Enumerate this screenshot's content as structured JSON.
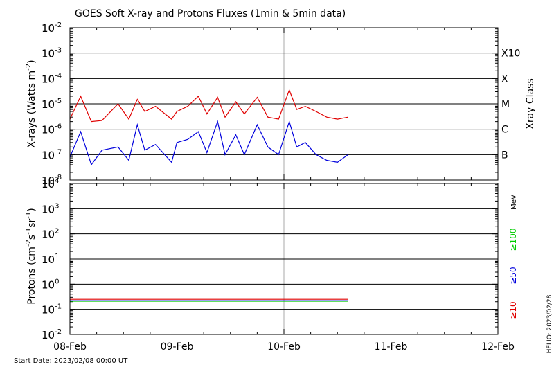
{
  "colors": {
    "background": "#ffffff",
    "gridline": "#000000",
    "dayline": "#aaaaaa",
    "xray_long": "#e00000",
    "xray_short": "#0000dd",
    "proton_10": "#e00000",
    "proton_50": "#0000dd",
    "proton_100": "#00cc00"
  },
  "header": {
    "title": "GOES Soft X-ray and Protons Fluxes   (1min & 5min data)"
  },
  "footer": {
    "start_date": "Start Date: 2023/02/08 00:00 UT",
    "helio_stamp": "HELIO: 2023/02/28"
  },
  "chart_data": [
    {
      "type": "line",
      "panel": "xray",
      "ylabel_main": "X-rays (Watts m",
      "ylabel_exp": "-2",
      "ylabel_close": ")",
      "yscale": "log",
      "ylim": [
        1e-08,
        0.01
      ],
      "ytick_exponents": [
        "-2",
        "-3",
        "-4",
        "-5",
        "-6",
        "-7",
        "-8"
      ],
      "right_axis_title": "Xray Class",
      "class_labels": [
        "X10",
        "X",
        "M",
        "C",
        "B"
      ],
      "class_levels": [
        0.001,
        0.0001,
        1e-05,
        1e-06,
        1e-07
      ],
      "x_days": [
        0,
        0.1,
        0.2,
        0.3,
        0.45,
        0.55,
        0.63,
        0.7,
        0.8,
        0.95,
        1.0,
        1.1,
        1.2,
        1.28,
        1.38,
        1.45,
        1.55,
        1.63,
        1.75,
        1.85,
        1.95,
        2.05,
        2.12,
        2.2,
        2.3,
        2.4,
        2.5,
        2.6
      ],
      "series": [
        {
          "name": "",
          "color_key": "xray_long",
          "values": [
            2.5e-06,
            2e-05,
            2e-06,
            2.2e-06,
            1e-05,
            2.5e-06,
            1.5e-05,
            5e-06,
            8e-06,
            2.5e-06,
            5e-06,
            8e-06,
            2e-05,
            4e-06,
            1.8e-05,
            3e-06,
            1.2e-05,
            4e-06,
            1.8e-05,
            3e-06,
            2.5e-06,
            3.5e-05,
            6e-06,
            8e-06,
            5e-06,
            3e-06,
            2.5e-06,
            3e-06
          ]
        },
        {
          "name": "",
          "color_key": "xray_short",
          "values": [
            8e-08,
            8e-07,
            4e-08,
            1.5e-07,
            2e-07,
            6e-08,
            1.5e-06,
            1.5e-07,
            2.5e-07,
            5e-08,
            3e-07,
            4e-07,
            8e-07,
            1.2e-07,
            2e-06,
            1e-07,
            6e-07,
            1e-07,
            1.5e-06,
            2e-07,
            1e-07,
            2e-06,
            2e-07,
            3e-07,
            1e-07,
            6e-08,
            5e-08,
            1e-07
          ]
        }
      ]
    },
    {
      "type": "line",
      "panel": "protons",
      "ylabel_main": "Protons (cm",
      "ylabel_mid1": "-2",
      "ylabel_s": "s",
      "ylabel_mid2": "-1",
      "ylabel_sr": "sr",
      "ylabel_mid3": "-1",
      "ylabel_close": ")",
      "yscale": "log",
      "ylim": [
        0.01,
        10000
      ],
      "ytick_bases": [
        "10",
        "10",
        "10",
        "10",
        "10",
        "10",
        "10"
      ],
      "ytick_exponents": [
        "4",
        "3",
        "2",
        "1",
        "0",
        "-1",
        "-2"
      ],
      "threshold": 10,
      "energy_unit": "MeV",
      "energy_labels": [
        "≥100",
        "≥50",
        "≥10"
      ],
      "x_days": [
        0,
        2.6
      ],
      "series": [
        {
          "name": "",
          "color_key": "proton_10",
          "values": [
            0.25,
            0.25
          ]
        },
        {
          "name": "",
          "color_key": "proton_50",
          "values": [
            0.22,
            0.22
          ]
        },
        {
          "name": "",
          "color_key": "proton_100",
          "values": [
            0.21,
            0.21
          ]
        }
      ]
    }
  ],
  "x_axis": {
    "labels": [
      "08-Feb",
      "09-Feb",
      "10-Feb",
      "11-Feb",
      "12-Feb"
    ],
    "range_days": [
      0,
      4
    ]
  }
}
